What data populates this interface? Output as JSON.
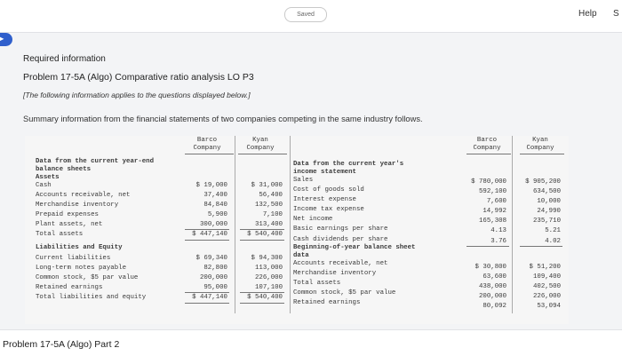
{
  "topbar": {
    "saved_label": "Saved",
    "help_label": "Help",
    "cut_label": "S"
  },
  "panel": {
    "required_info": "Required information",
    "problem_title": "Problem 17-5A (Algo) Comparative ratio analysis LO P3",
    "info_note": "[The following information applies to the questions displayed below.]",
    "summary": "Summary information from the financial statements of two companies competing in the same industry follows."
  },
  "left_table": {
    "col_barco": "Barco Company",
    "col_kyan": "Kyan Company",
    "title_line1": "Data from the current year-end",
    "title_line2": "balance sheets",
    "assets_label": "Assets",
    "assets": [
      {
        "label": "Cash",
        "barco": "$ 19,000",
        "kyan": "$ 31,000"
      },
      {
        "label": "Accounts receivable, net",
        "barco": "37,400",
        "kyan": "56,400"
      },
      {
        "label": "Merchandise inventory",
        "barco": "84,840",
        "kyan": "132,500"
      },
      {
        "label": "Prepaid expenses",
        "barco": "5,900",
        "kyan": "7,100"
      },
      {
        "label": "Plant assets, net",
        "barco": "300,000",
        "kyan": "313,400"
      },
      {
        "label": "Total assets",
        "barco": "$ 447,140",
        "kyan": "$ 540,400"
      }
    ],
    "liab_label": "Liabilities and Equity",
    "liabilities": [
      {
        "label": "Current liabilities",
        "barco": "$ 69,340",
        "kyan": "$ 94,300"
      },
      {
        "label": "Long-term notes payable",
        "barco": "82,800",
        "kyan": "113,000"
      },
      {
        "label": "Common stock, $5 par value",
        "barco": "200,000",
        "kyan": "226,000"
      },
      {
        "label": "Retained earnings",
        "barco": "95,000",
        "kyan": "107,100"
      },
      {
        "label": "Total liabilities and equity",
        "barco": "$ 447,140",
        "kyan": "$ 540,400"
      }
    ]
  },
  "right_table": {
    "col_barco": "Barco Company",
    "col_kyan": "Kyan Company",
    "title_line1": "Data from the current year's",
    "title_line2": "income statement",
    "income": [
      {
        "label": "Sales",
        "barco": "$ 780,000",
        "kyan": "$ 905,200"
      },
      {
        "label": "Cost of goods sold",
        "barco": "592,100",
        "kyan": "634,500"
      },
      {
        "label": "Interest expense",
        "barco": "7,600",
        "kyan": "10,000"
      },
      {
        "label": "Income tax expense",
        "barco": "14,992",
        "kyan": "24,990"
      },
      {
        "label": "Net income",
        "barco": "165,308",
        "kyan": "235,710"
      },
      {
        "label": "Basic earnings per share",
        "barco": "4.13",
        "kyan": "5.21"
      },
      {
        "label": "Cash dividends per share",
        "barco": "3.76",
        "kyan": "4.02"
      }
    ],
    "beg_line1": "Beginning-of-year balance sheet",
    "beg_line2": "data",
    "beginning": [
      {
        "label": "Accounts receivable, net",
        "barco": "$ 30,800",
        "kyan": "$ 51,200"
      },
      {
        "label": "Merchandise inventory",
        "barco": "63,600",
        "kyan": "109,400"
      },
      {
        "label": "Total assets",
        "barco": "438,000",
        "kyan": "402,500"
      },
      {
        "label": "Common stock, $5 par value",
        "barco": "200,000",
        "kyan": "226,000"
      },
      {
        "label": "Retained earnings",
        "barco": "80,092",
        "kyan": "53,094"
      }
    ]
  },
  "part2_title": "Problem 17-5A (Algo) Part 2",
  "colors": {
    "badge": "#2f5fcc",
    "panel_bg": "#f3f4f6"
  }
}
